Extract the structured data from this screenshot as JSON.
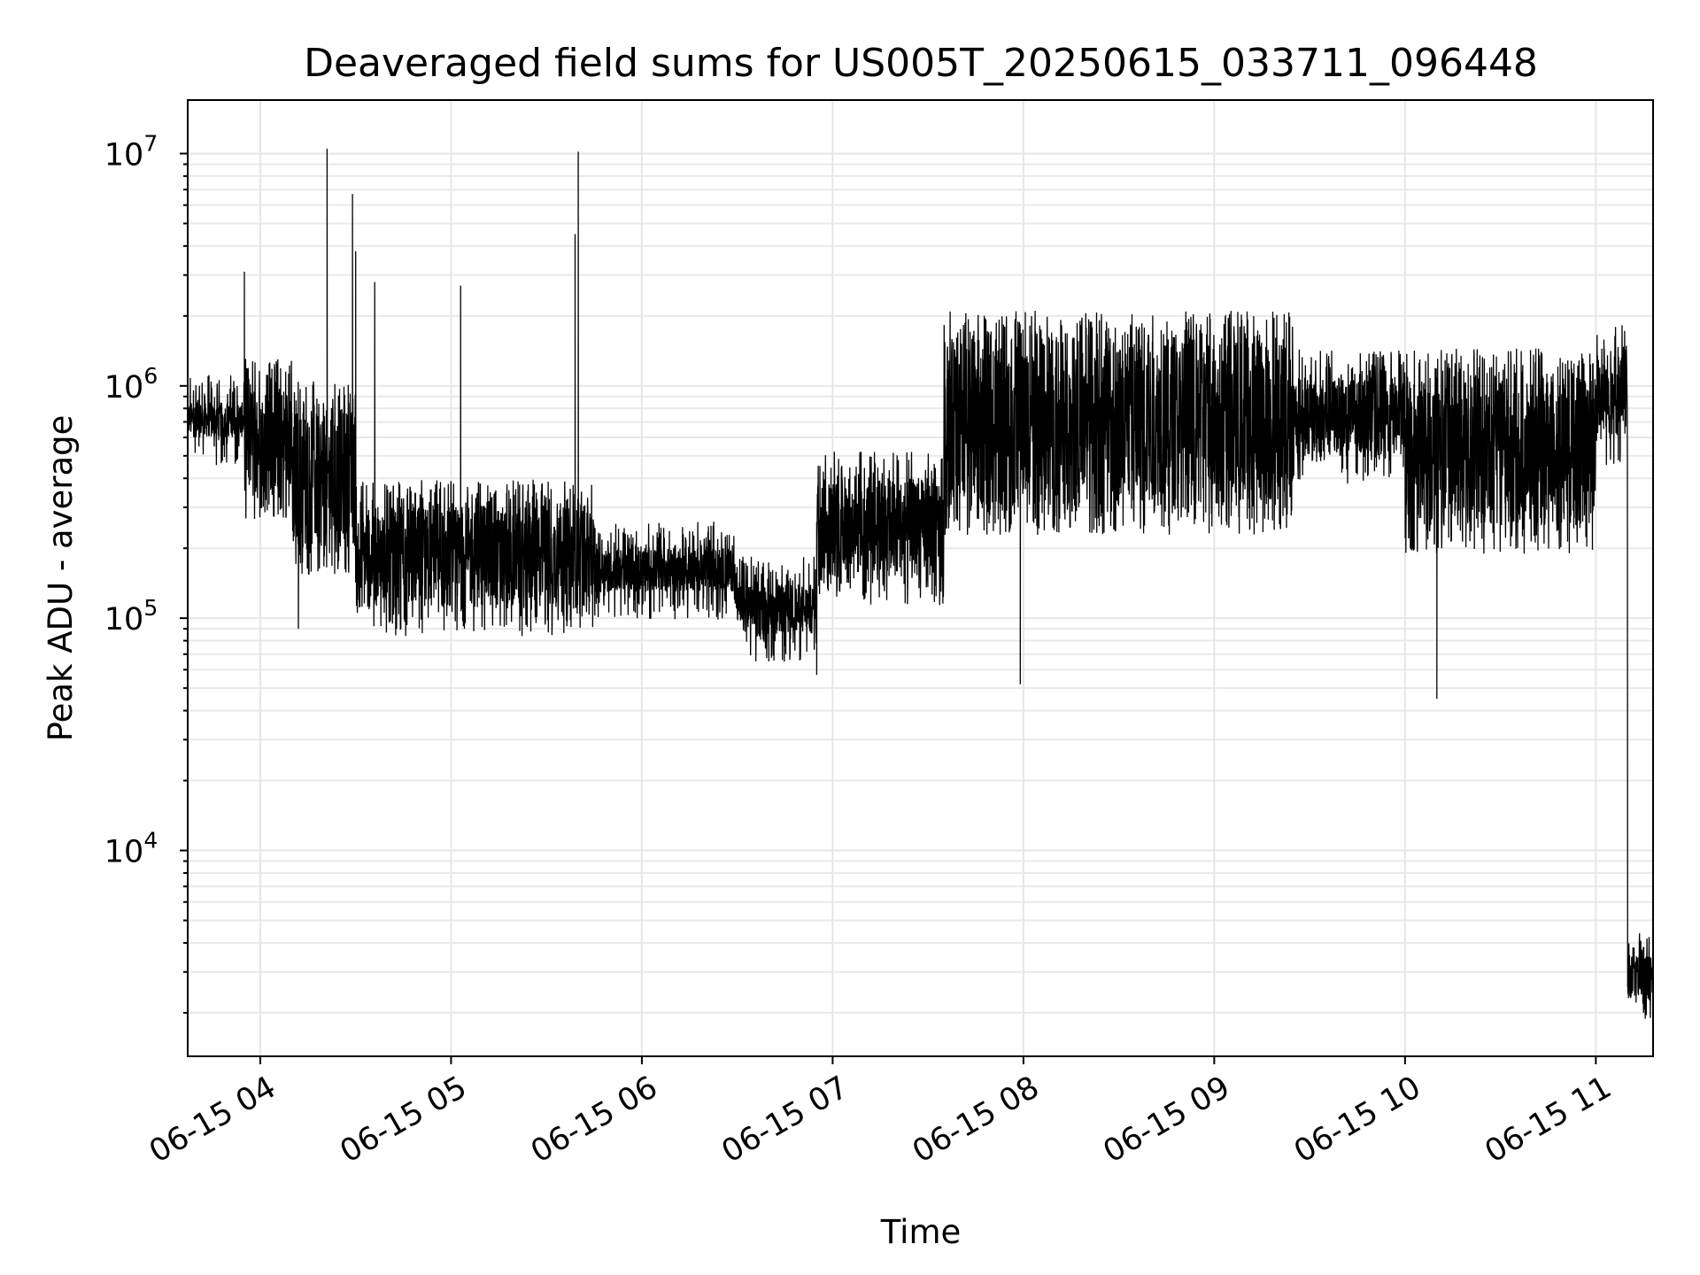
{
  "chart_data": {
    "type": "line",
    "title": "Deaveraged field sums for US005T_20250615_033711_096448",
    "xlabel": "Time",
    "ylabel": "Peak ADU - average",
    "yscale": "log",
    "ylim": [
      1300,
      17000000
    ],
    "xlim": [
      "2025-06-15T03:37:11",
      "2025-06-15T11:18:00"
    ],
    "grid": true,
    "x_ticks": [
      {
        "value": "2025-06-15T04:00",
        "label": "06-15 04"
      },
      {
        "value": "2025-06-15T05:00",
        "label": "06-15 05"
      },
      {
        "value": "2025-06-15T06:00",
        "label": "06-15 06"
      },
      {
        "value": "2025-06-15T07:00",
        "label": "06-15 07"
      },
      {
        "value": "2025-06-15T08:00",
        "label": "06-15 08"
      },
      {
        "value": "2025-06-15T09:00",
        "label": "06-15 09"
      },
      {
        "value": "2025-06-15T10:00",
        "label": "06-15 10"
      },
      {
        "value": "2025-06-15T11:00",
        "label": "06-15 11"
      }
    ],
    "y_ticks": [
      {
        "value": 10000,
        "base": "10",
        "exp": "4"
      },
      {
        "value": 100000,
        "base": "10",
        "exp": "5"
      },
      {
        "value": 1000000,
        "base": "10",
        "exp": "6"
      },
      {
        "value": 10000000,
        "base": "10",
        "exp": "7"
      }
    ],
    "series": [
      {
        "color": "#000000",
        "segments": [
          {
            "start": "2025-06-15T03:37:11",
            "end": "2025-06-15T03:55",
            "floor": 600000,
            "ceiling": 850000
          },
          {
            "start": "2025-06-15T03:55",
            "end": "2025-06-15T04:10",
            "floor": 350000,
            "ceiling": 1000000
          },
          {
            "start": "2025-06-15T04:10",
            "end": "2025-06-15T04:30",
            "floor": 200000,
            "ceiling": 800000
          },
          {
            "start": "2025-06-15T04:30",
            "end": "2025-06-15T05:45",
            "floor": 110000,
            "ceiling": 300000
          },
          {
            "start": "2025-06-15T05:45",
            "end": "2025-06-15T06:30",
            "floor": 130000,
            "ceiling": 200000
          },
          {
            "start": "2025-06-15T06:30",
            "end": "2025-06-15T06:55",
            "floor": 85000,
            "ceiling": 140000
          },
          {
            "start": "2025-06-15T06:55",
            "end": "2025-06-15T07:35",
            "floor": 150000,
            "ceiling": 400000
          },
          {
            "start": "2025-06-15T07:35",
            "end": "2025-06-15T09:25",
            "floor": 300000,
            "ceiling": 1600000
          },
          {
            "start": "2025-06-15T09:25",
            "end": "2025-06-15T10:00",
            "floor": 500000,
            "ceiling": 1100000
          },
          {
            "start": "2025-06-15T10:00",
            "end": "2025-06-15T11:00",
            "floor": 250000,
            "ceiling": 1100000
          },
          {
            "start": "2025-06-15T11:00",
            "end": "2025-06-15T11:10",
            "floor": 600000,
            "ceiling": 1400000
          },
          {
            "start": "2025-06-15T11:10",
            "end": "2025-06-15T11:18:00",
            "floor": 2300,
            "ceiling": 3500
          }
        ],
        "peaks": [
          {
            "time": "2025-06-15T03:55",
            "value": 3100000
          },
          {
            "time": "2025-06-15T04:21",
            "value": 10500000
          },
          {
            "time": "2025-06-15T04:29",
            "value": 6700000
          },
          {
            "time": "2025-06-15T04:30",
            "value": 3800000
          },
          {
            "time": "2025-06-15T04:36",
            "value": 2800000
          },
          {
            "time": "2025-06-15T05:03",
            "value": 2700000
          },
          {
            "time": "2025-06-15T05:40",
            "value": 10200000
          },
          {
            "time": "2025-06-15T05:39",
            "value": 4500000
          }
        ],
        "dips": [
          {
            "time": "2025-06-15T04:12",
            "value": 90000
          },
          {
            "time": "2025-06-15T06:55",
            "value": 57000
          },
          {
            "time": "2025-06-15T07:59",
            "value": 52000
          },
          {
            "time": "2025-06-15T10:10",
            "value": 45000
          },
          {
            "time": "2025-06-15T11:15",
            "value": 2000
          }
        ]
      }
    ]
  }
}
